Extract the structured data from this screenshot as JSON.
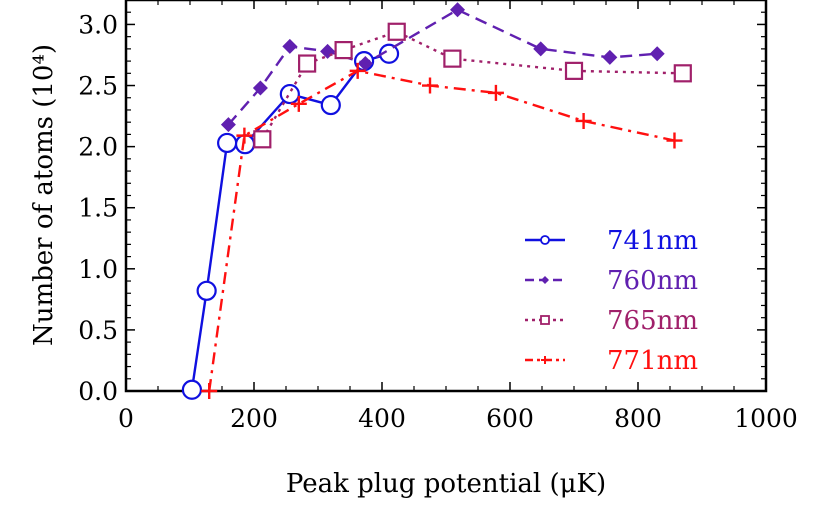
{
  "chart_data": {
    "type": "line",
    "title": "",
    "xlabel": "Peak plug potential (μK)",
    "ylabel": "Number of atoms (10⁴)",
    "xlim": [
      0,
      1000
    ],
    "ylim": [
      0,
      3.2
    ],
    "x_ticks": [
      "0",
      "200",
      "400",
      "600",
      "800",
      "1000"
    ],
    "y_ticks": [
      "0.0",
      "0.5",
      "1.0",
      "1.5",
      "2.0",
      "2.5",
      "3.0"
    ],
    "legend_position": "bottom-right",
    "series": [
      {
        "name": "741nm",
        "color": "#1010e0",
        "dash": "solid",
        "marker": "circle",
        "x": [
          103,
          126,
          158,
          186,
          256,
          320,
          372,
          411
        ],
        "y": [
          0.01,
          0.82,
          2.03,
          2.02,
          2.43,
          2.34,
          2.7,
          2.76
        ]
      },
      {
        "name": "760nm",
        "color": "#6020b0",
        "dash": "dashed",
        "marker": "diamond",
        "x": [
          160,
          210,
          256,
          315,
          374,
          518,
          648,
          756,
          830
        ],
        "y": [
          2.18,
          2.48,
          2.82,
          2.78,
          2.68,
          3.12,
          2.8,
          2.73,
          2.76
        ]
      },
      {
        "name": "765nm",
        "color": "#a0206a",
        "dash": "dotted",
        "marker": "square",
        "x": [
          213,
          283,
          340,
          423,
          510,
          700,
          870
        ],
        "y": [
          2.06,
          2.68,
          2.79,
          2.94,
          2.72,
          2.62,
          2.6
        ]
      },
      {
        "name": "771nm",
        "color": "#ff1010",
        "dash": "dashdot",
        "marker": "plus",
        "x": [
          130,
          185,
          270,
          362,
          475,
          578,
          715,
          857
        ],
        "y": [
          0.0,
          2.09,
          2.35,
          2.62,
          2.5,
          2.44,
          2.21,
          2.05
        ]
      }
    ]
  }
}
